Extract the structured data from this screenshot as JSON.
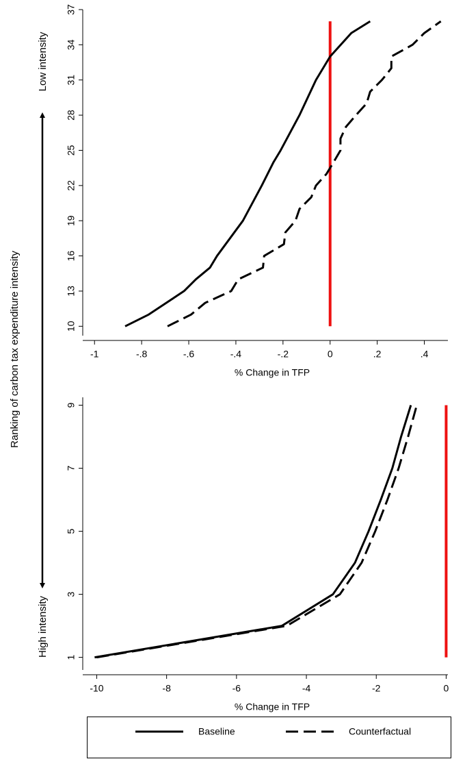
{
  "chart_data": [
    {
      "type": "line",
      "ylabel": "Ranking of carbon tax expenditure intensity",
      "annotations": [
        "Low intensity",
        "High intensity"
      ],
      "xlabel": "% Change in TFP",
      "xlim": [
        -1.05,
        0.5
      ],
      "ylim": [
        9.2,
        37
      ],
      "xticks": [
        -1,
        {
          "value": -0.8,
          "label": "-.8"
        },
        {
          "value": -0.6,
          "label": "-.6"
        },
        {
          "value": -0.4,
          "label": "-.4"
        },
        {
          "value": -0.2,
          "label": "-.2"
        },
        0,
        {
          "value": 0.2,
          "label": ".2"
        },
        {
          "value": 0.4,
          "label": ".4"
        }
      ],
      "yticks": [
        10,
        13,
        16,
        19,
        22,
        25,
        28,
        31,
        34,
        37
      ],
      "vline": {
        "x": 0,
        "y": [
          10,
          36
        ],
        "color": "#ee1111"
      },
      "series": [
        {
          "name": "Baseline",
          "color": "#000000",
          "dash": false,
          "x": [
            -0.87,
            -0.77,
            -0.62,
            -0.57,
            -0.51,
            -0.48,
            -0.37,
            -0.29,
            -0.24,
            -0.21,
            -0.13,
            -0.06,
            0.0,
            0.09,
            0.17
          ],
          "values": [
            10,
            11,
            13,
            14,
            15,
            16,
            19,
            22,
            24,
            25,
            28,
            31,
            33,
            35,
            36
          ]
        },
        {
          "name": "Counterfactual",
          "color": "#000000",
          "dash": true,
          "x": [
            -0.69,
            -0.59,
            -0.53,
            -0.42,
            -0.39,
            -0.285,
            -0.28,
            -0.196,
            -0.19,
            -0.147,
            -0.13,
            -0.08,
            -0.06,
            -0.015,
            0.015,
            0.044,
            0.044,
            0.067,
            0.11,
            0.155,
            0.17,
            0.22,
            0.26,
            0.26,
            0.35,
            0.4,
            0.47
          ],
          "values": [
            10,
            11,
            12,
            13,
            14,
            15,
            16,
            17,
            18,
            19,
            20,
            21,
            22,
            23,
            24,
            25,
            26,
            27,
            28,
            29,
            30,
            31,
            32,
            33,
            34,
            35,
            36
          ]
        }
      ]
    },
    {
      "type": "line",
      "xlabel": "% Change in TFP",
      "xlim": [
        -10.4,
        0.05
      ],
      "ylim": [
        0.6,
        9.25
      ],
      "xticks": [
        -10,
        -8,
        -6,
        -4,
        -2,
        0
      ],
      "yticks": [
        1,
        3,
        5,
        7,
        9
      ],
      "vline": {
        "x": 0,
        "y": [
          1,
          9
        ],
        "color": "#ee1111"
      },
      "series": [
        {
          "color": "#000000",
          "dash": false,
          "x": [
            -10.06,
            -4.7,
            -3.24,
            -2.61,
            -2.22,
            -1.87,
            -1.54,
            -1.29,
            -1.01
          ],
          "values": [
            1,
            2,
            3,
            4,
            5,
            6,
            7,
            8,
            9
          ]
        },
        {
          "color": "#000000",
          "dash": true,
          "x": [
            -10.0,
            -4.56,
            -3.04,
            -2.42,
            -2.03,
            -1.68,
            -1.36,
            -1.09,
            -0.84
          ],
          "values": [
            1,
            2,
            3,
            4,
            5,
            6,
            7,
            8,
            9
          ]
        }
      ]
    }
  ]
}
